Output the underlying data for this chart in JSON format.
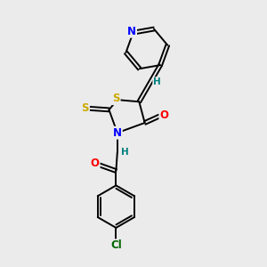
{
  "bg_color": "#ebebeb",
  "atom_colors": {
    "N": "#0000ff",
    "O": "#ff0000",
    "S": "#ccaa00",
    "Cl": "#006600",
    "C": "#000000",
    "H": "#008080"
  }
}
